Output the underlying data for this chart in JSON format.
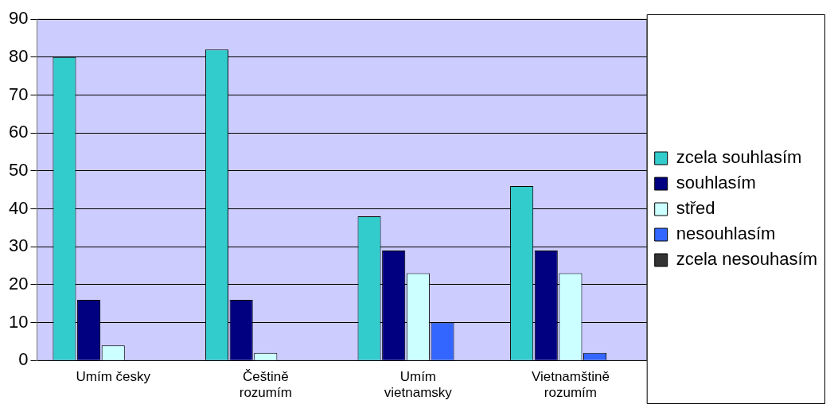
{
  "chart_data": {
    "type": "bar",
    "categories": [
      "Umím česky",
      "Češtině rozumím",
      "Umím vietnamsky",
      "Vietnamštině rozumím"
    ],
    "series": [
      {
        "name": "zcela souhlasím",
        "color": "#33cccc",
        "values": [
          80,
          82,
          38,
          46
        ]
      },
      {
        "name": "souhlasím",
        "color": "#000080",
        "values": [
          16,
          16,
          29,
          29
        ]
      },
      {
        "name": "střed",
        "color": "#ccffff",
        "values": [
          4,
          2,
          23,
          23
        ]
      },
      {
        "name": "nesouhlasím",
        "color": "#3366ff",
        "values": [
          0,
          0,
          10,
          2
        ]
      },
      {
        "name": "zcela nesouhasím",
        "color": "#333333",
        "values": [
          0,
          0,
          0,
          0
        ]
      }
    ],
    "ylim": [
      0,
      90
    ],
    "yticks": [
      0,
      10,
      20,
      30,
      40,
      50,
      60,
      70,
      80,
      90
    ],
    "grid": "y",
    "legend": "right"
  }
}
